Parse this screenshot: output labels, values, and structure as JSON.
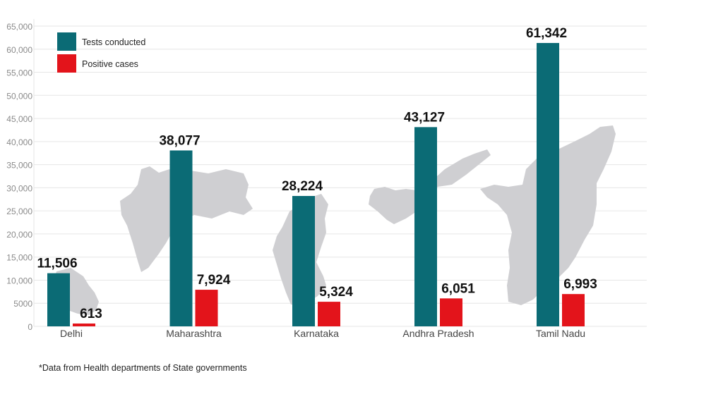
{
  "chart_data": {
    "type": "bar",
    "categories": [
      "Delhi",
      "Maharashtra",
      "Karnataka",
      "Andhra Pradesh",
      "Tamil Nadu"
    ],
    "series": [
      {
        "name": "Tests conducted",
        "values": [
          11506,
          38077,
          28224,
          43127,
          61342
        ],
        "labels": [
          "11,506",
          "38,077",
          "28,224",
          "43,127",
          "61,342"
        ],
        "color": "#0b6b75"
      },
      {
        "name": "Positive cases",
        "values": [
          613,
          7924,
          5324,
          6051,
          6993
        ],
        "labels": [
          "613",
          "7,924",
          "5,324",
          "6,051",
          "6,993"
        ],
        "color": "#e3141b"
      }
    ],
    "ylim": [
      0,
      65000
    ],
    "yticks": [
      0,
      5000,
      10000,
      15000,
      20000,
      25000,
      30000,
      35000,
      40000,
      45000,
      50000,
      55000,
      60000,
      65000
    ],
    "ytick_labels": [
      "0",
      "5000",
      "10,000",
      "15,000",
      "20,000",
      "25,000",
      "30,000",
      "35,000",
      "40,000",
      "45,000",
      "50,000",
      "55,000",
      "60,000",
      "65,000"
    ],
    "grid": true,
    "legend": "top-left",
    "background_images": "grey state map silhouettes behind each category"
  },
  "footnote": "*Data from Health departments of State governments"
}
